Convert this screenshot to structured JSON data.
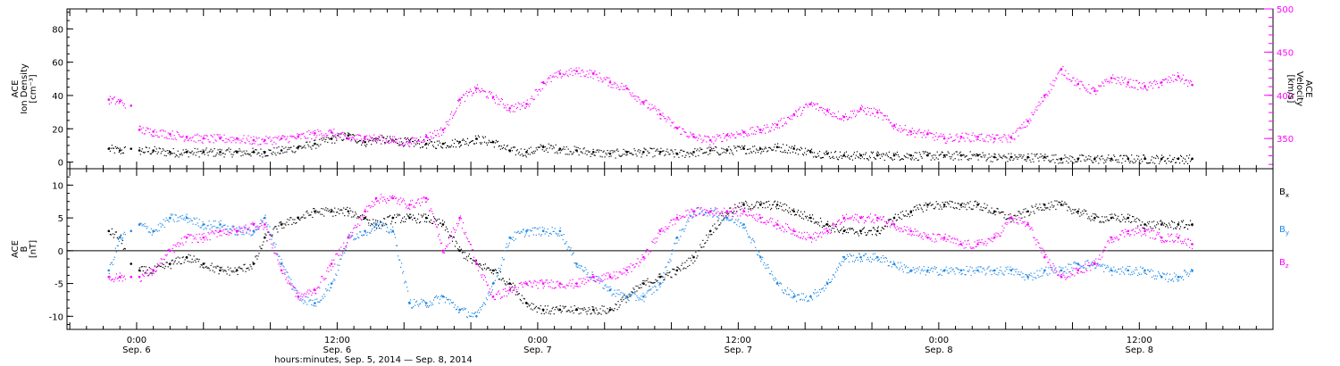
{
  "chart_data": [
    {
      "panel": "top",
      "type": "scatter",
      "left_axis": {
        "label_lines": [
          "ACE",
          "Ion Density",
          "[cm⁻³]"
        ],
        "ticks": [
          0,
          20,
          40,
          60,
          80
        ],
        "ylim": [
          -4,
          92
        ]
      },
      "right_axis": {
        "label_lines": [
          "ACE",
          "Velocity",
          "[km/s]"
        ],
        "ticks": [
          350,
          400,
          450,
          500
        ],
        "ylim": [
          315,
          500
        ],
        "color": "#ff00ff"
      },
      "series": [
        {
          "axis": "left",
          "color": "#000000",
          "x": [
            -5,
            -3,
            -1,
            0.5,
            3,
            6,
            9,
            12,
            15,
            18,
            21,
            23,
            26,
            29,
            32,
            35,
            38,
            41,
            43,
            46,
            49,
            52,
            55,
            58,
            61,
            64,
            67,
            70,
            73,
            76,
            79,
            82,
            85,
            88,
            91,
            94,
            97,
            100,
            103,
            106,
            109,
            112,
            115,
            118,
            121,
            124,
            127,
            130,
            133,
            136,
            139,
            142,
            145,
            148,
            151,
            154,
            157,
            160,
            163,
            166,
            169,
            172,
            175,
            178,
            181,
            184,
            187,
            189.5
          ],
          "y": [
            8,
            7,
            8,
            7,
            7,
            6,
            6,
            6,
            6,
            6,
            6,
            6,
            7,
            9,
            11,
            14,
            16,
            12,
            14,
            13,
            12,
            11,
            11,
            12,
            14,
            12,
            7,
            6,
            9,
            8,
            7,
            6,
            5,
            6,
            6,
            6,
            5,
            6,
            7,
            7,
            8,
            8,
            9,
            8,
            6,
            5,
            4,
            4,
            4,
            4,
            4,
            4,
            4,
            4,
            4,
            3,
            3,
            3,
            3,
            2,
            2,
            2,
            2,
            2,
            2,
            2,
            2,
            2
          ]
        },
        {
          "axis": "right",
          "color": "#ff00ff",
          "x": [
            -5,
            -3,
            -1,
            0.5,
            3,
            6,
            9,
            12,
            15,
            18,
            21,
            23,
            26,
            29,
            32,
            35,
            38,
            41,
            43,
            46,
            49,
            52,
            55,
            58,
            61,
            64,
            67,
            70,
            73,
            76,
            79,
            82,
            85,
            88,
            91,
            94,
            97,
            100,
            103,
            106,
            109,
            112,
            115,
            118,
            121,
            124,
            127,
            130,
            133,
            136,
            139,
            142,
            145,
            148,
            151,
            154,
            157,
            160,
            163,
            166,
            169,
            172,
            175,
            178,
            181,
            184,
            187,
            189.5
          ],
          "y": [
            395,
            393,
            388,
            360,
            358,
            355,
            352,
            350,
            350,
            350,
            348,
            348,
            350,
            352,
            356,
            357,
            350,
            352,
            350,
            348,
            346,
            352,
            360,
            395,
            408,
            398,
            385,
            390,
            415,
            425,
            428,
            425,
            415,
            408,
            392,
            378,
            362,
            352,
            348,
            354,
            357,
            360,
            366,
            378,
            390,
            382,
            375,
            384,
            380,
            365,
            358,
            355,
            350,
            352,
            352,
            350,
            351,
            370,
            400,
            430,
            413,
            405,
            420,
            415,
            410,
            415,
            422,
            412
          ]
        }
      ]
    },
    {
      "panel": "bottom",
      "type": "scatter",
      "left_axis": {
        "label_lines": [
          "ACE",
          "B",
          "[nT]"
        ],
        "ticks": [
          -10,
          -5,
          0,
          5,
          10
        ],
        "ylim": [
          -12,
          12.5
        ]
      },
      "zero_line": true,
      "series": [
        {
          "name": "Bx",
          "color": "#000000",
          "x": [
            -5,
            -3,
            -1,
            0.5,
            3,
            6,
            9,
            12,
            15,
            18,
            21,
            23,
            26,
            29,
            32,
            35,
            38,
            41,
            43,
            46,
            49,
            52,
            55,
            58,
            61,
            64,
            67,
            70,
            73,
            76,
            79,
            82,
            85,
            88,
            91,
            94,
            97,
            100,
            103,
            106,
            109,
            112,
            115,
            118,
            121,
            124,
            127,
            130,
            133,
            136,
            139,
            142,
            145,
            148,
            151,
            154,
            157,
            160,
            163,
            166,
            169,
            172,
            175,
            178,
            181,
            184,
            187,
            189.5
          ],
          "y": [
            3,
            2,
            -2,
            -3,
            -3,
            -2,
            -1,
            -2,
            -3,
            -3,
            -2,
            2,
            4,
            5,
            6,
            6,
            6,
            5,
            4,
            5,
            5,
            5,
            4,
            0,
            -2,
            -3,
            -5,
            -8,
            -9,
            -9,
            -9,
            -9,
            -9,
            -7,
            -5,
            -4,
            -3,
            -1,
            3,
            6,
            7,
            7,
            7,
            6,
            5,
            4,
            3,
            3,
            3,
            5,
            6,
            7,
            7,
            7,
            7,
            6,
            5,
            6,
            7,
            7,
            6,
            5,
            5,
            5,
            4,
            4,
            4,
            4
          ]
        },
        {
          "name": "By",
          "color": "#1e88e5",
          "x": [
            -5,
            -3,
            -1,
            0.5,
            3,
            6,
            9,
            12,
            15,
            18,
            21,
            23,
            26,
            29,
            32,
            35,
            38,
            41,
            43,
            46,
            49,
            52,
            55,
            58,
            61,
            64,
            67,
            70,
            73,
            76,
            79,
            82,
            85,
            88,
            91,
            94,
            97,
            100,
            103,
            106,
            109,
            112,
            115,
            118,
            121,
            124,
            127,
            130,
            133,
            136,
            139,
            142,
            145,
            148,
            151,
            154,
            157,
            160,
            163,
            166,
            169,
            172,
            175,
            178,
            181,
            184,
            187,
            189.5
          ],
          "y": [
            -3,
            2,
            3,
            4,
            3,
            5,
            5,
            4,
            4,
            3,
            3,
            5,
            -2,
            -7,
            -8,
            -5,
            2,
            3,
            4,
            3,
            -8,
            -8,
            -7,
            -9,
            -10,
            -5,
            2,
            3,
            3,
            3,
            -2,
            -4,
            -6,
            -7,
            -7,
            -5,
            2,
            6,
            6,
            5,
            4,
            -1,
            -5,
            -7,
            -7,
            -5,
            -1,
            -1,
            -1,
            -2,
            -3,
            -3,
            -3,
            -3,
            -3,
            -3,
            -3,
            -4,
            -3,
            -3,
            -2,
            -2,
            -3,
            -3,
            -3,
            -4,
            -4,
            -3
          ]
        },
        {
          "name": "Bz",
          "color": "#ff00ff",
          "x": [
            -5,
            -3,
            -1,
            0.5,
            3,
            6,
            9,
            12,
            15,
            18,
            21,
            23,
            26,
            29,
            32,
            35,
            38,
            41,
            43,
            46,
            49,
            52,
            55,
            58,
            61,
            64,
            67,
            70,
            73,
            76,
            79,
            82,
            85,
            88,
            91,
            94,
            97,
            100,
            103,
            106,
            109,
            112,
            115,
            118,
            121,
            124,
            127,
            130,
            133,
            136,
            139,
            142,
            145,
            148,
            151,
            154,
            157,
            160,
            163,
            166,
            169,
            172,
            175,
            178,
            181,
            184,
            187,
            189.5
          ],
          "y": [
            -4,
            -4,
            -4,
            -4,
            -3,
            0,
            2,
            2,
            3,
            3,
            4,
            4,
            -3,
            -7,
            -6,
            -2,
            2,
            6,
            8,
            8,
            7,
            8,
            0,
            5,
            -2,
            -7,
            -6,
            -5,
            -5,
            -5,
            -5,
            -4,
            -4,
            -3,
            -1,
            3,
            5,
            6,
            6,
            6,
            6,
            5,
            4,
            3,
            2,
            3,
            5,
            5,
            5,
            4,
            3,
            2,
            2,
            1,
            1,
            2,
            5,
            4,
            -1,
            -4,
            -3,
            -2,
            2,
            3,
            3,
            2,
            2,
            1
          ]
        }
      ]
    }
  ],
  "x_axis": {
    "range_hours": [
      -12.5,
      204
    ],
    "tick_hours": [
      0,
      36,
      72,
      108,
      144,
      180
    ],
    "tick_labels": [
      {
        "time": "0:00",
        "date": "Sep. 6"
      },
      {
        "time": "12:00",
        "date": "Sep. 6"
      },
      {
        "time": "0:00",
        "date": "Sep. 7"
      },
      {
        "time": "12:00",
        "date": "Sep. 7"
      },
      {
        "time": "0:00",
        "date": "Sep. 8"
      },
      {
        "time": "12:00",
        "date": "Sep. 8"
      }
    ],
    "minor_tick_step_hours": 3,
    "title": "hours:minutes, Sep.  5, 2014 — Sep.  8, 2014"
  },
  "legend": [
    "Bx",
    "By",
    "Bz"
  ]
}
